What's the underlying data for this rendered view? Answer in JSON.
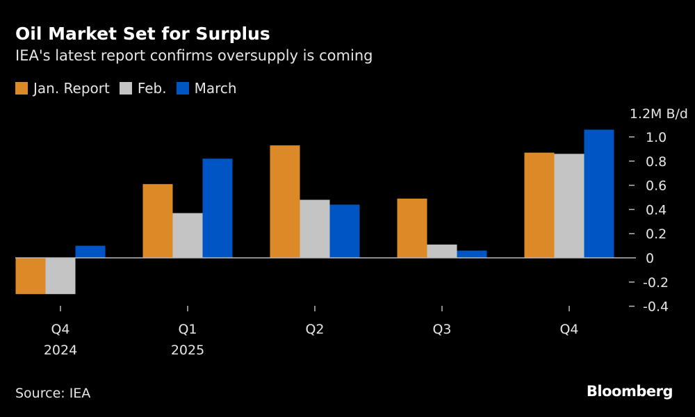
{
  "title": "Oil Market Set for Surplus",
  "subtitle": "IEA's latest report confirms oversupply is coming",
  "source": "Source: IEA",
  "brand": "Bloomberg",
  "chart_data": {
    "type": "bar",
    "title": "Oil Market Set for Surplus",
    "subtitle": "IEA's latest report confirms oversupply is coming",
    "unit_label": "1.2M B/d",
    "categories": [
      [
        "Q4",
        "2024"
      ],
      [
        "Q1",
        "2025"
      ],
      [
        "Q2",
        ""
      ],
      [
        "Q3",
        ""
      ],
      [
        "Q4",
        ""
      ]
    ],
    "series": [
      {
        "name": "Jan. Report",
        "color": "#db8a27",
        "values": [
          -0.3,
          0.61,
          0.93,
          0.49,
          0.87
        ]
      },
      {
        "name": "Feb.",
        "color": "#c4c4c4",
        "values": [
          -0.3,
          0.37,
          0.48,
          0.11,
          0.86
        ]
      },
      {
        "name": "March",
        "color": "#0055c4",
        "values": [
          0.1,
          0.82,
          0.44,
          0.06,
          1.06
        ]
      }
    ],
    "ylim": [
      -0.4,
      1.2
    ],
    "yticks": [
      {
        "value": 1.0,
        "label": "1.0"
      },
      {
        "value": 0.8,
        "label": "0.8"
      },
      {
        "value": 0.6,
        "label": "0.6"
      },
      {
        "value": 0.4,
        "label": "0.4"
      },
      {
        "value": 0.2,
        "label": "0.2"
      },
      {
        "value": 0,
        "label": "0"
      },
      {
        "value": -0.2,
        "label": "-0.2"
      },
      {
        "value": -0.4,
        "label": "-0.4"
      }
    ],
    "y_axis_position": "right",
    "grid": false,
    "legend": "top-left"
  }
}
